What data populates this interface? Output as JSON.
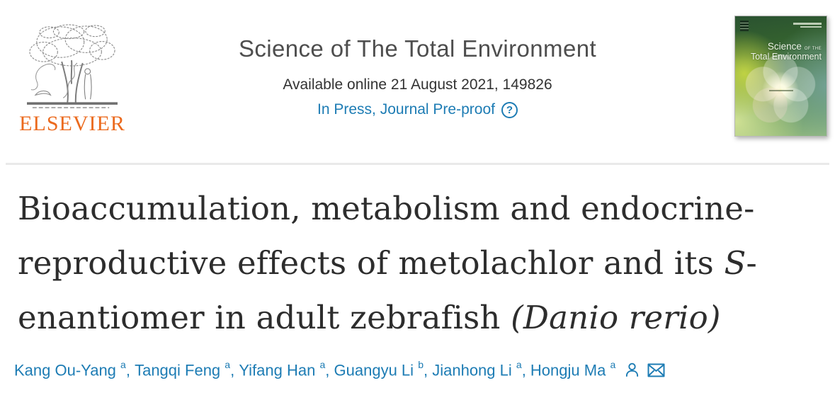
{
  "publisher": {
    "name": "ELSEVIER"
  },
  "journal": {
    "title": "Science of The Total Environment",
    "availability": "Available online 21 August 2021, 149826",
    "status": "In Press, Journal Pre-proof",
    "status_help_symbol": "?",
    "cover": {
      "line1": "Science",
      "line1_suffix": "of the",
      "line2": "Total Environment"
    }
  },
  "article": {
    "title_lines": [
      [
        {
          "text": "Bioaccumulation, metabolism and endocrine-"
        }
      ],
      [
        {
          "text": "reproductive effects of metolachlor and its "
        },
        {
          "text": "S",
          "italic": true
        },
        {
          "text": "-"
        }
      ],
      [
        {
          "text": "enantiomer in adult zebrafish "
        },
        {
          "text": "(Danio rerio)",
          "italic": true
        }
      ]
    ],
    "authors": [
      {
        "name": "Kang Ou-Yang",
        "affiliation": "a"
      },
      {
        "name": "Tangqi Feng",
        "affiliation": "a"
      },
      {
        "name": "Yifang Han",
        "affiliation": "a"
      },
      {
        "name": "Guangyu Li",
        "affiliation": "b"
      },
      {
        "name": "Jianhong Li",
        "affiliation": "a"
      },
      {
        "name": "Hongju Ma",
        "affiliation": "a"
      }
    ]
  },
  "icons": {
    "help": "question-circle",
    "author_profile": "person-outline",
    "corresponding_author": "envelope"
  },
  "colors": {
    "link_blue": "#1d7cb4",
    "elsevier_orange": "#eb6a1e",
    "title_text": "#2d2d2d",
    "journal_text": "#4e4e4e",
    "divider": "#e9e9e9"
  }
}
